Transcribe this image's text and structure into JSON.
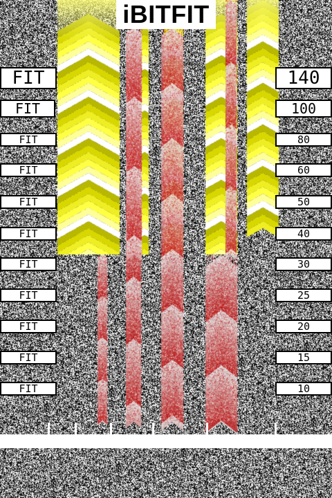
{
  "title": "iBITFIT",
  "fit_labels": [
    "FIT",
    "FIT",
    "FIT",
    "FIT",
    "FIT",
    "FIT",
    "FIT",
    "FIT",
    "FIT",
    "FIT",
    "FIT"
  ],
  "scale_values": [
    "140",
    "100",
    "80",
    "60",
    "50",
    "40",
    "30",
    "25",
    "20",
    "15",
    "10"
  ],
  "colors": {
    "yellow": "#ffff33",
    "olive": "#b8b800",
    "red": "#dd2222",
    "noise_dark": "#000000",
    "noise_light": "#ffffff"
  }
}
